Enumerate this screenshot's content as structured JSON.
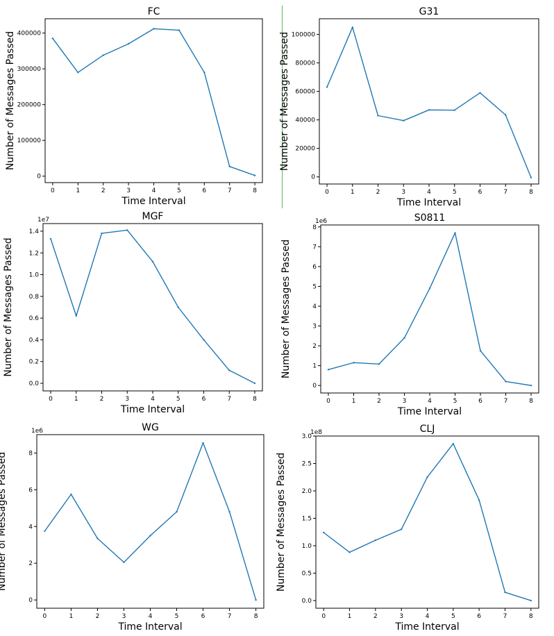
{
  "colors": {
    "line": "#1f77b4",
    "divider": "#5fb85f"
  },
  "chart_data": [
    {
      "id": "fc",
      "type": "line",
      "title": "FC",
      "xlabel": "Time Interval",
      "ylabel": "Number of Messages Passed",
      "x": [
        0,
        1,
        2,
        3,
        4,
        5,
        6,
        7,
        8
      ],
      "values": [
        385000,
        290000,
        338000,
        370000,
        412000,
        408000,
        290000,
        27000,
        2000
      ],
      "xlim": [
        -0.3,
        8.3
      ],
      "ylim": [
        -18000,
        440000
      ],
      "yticks": [
        0,
        100000,
        200000,
        300000,
        400000
      ],
      "yticklabels": [
        "0",
        "100000",
        "200000",
        "300000",
        "400000"
      ],
      "offset": ""
    },
    {
      "id": "g31",
      "type": "line",
      "title": "G31",
      "xlabel": "Time Interval",
      "ylabel": "Number of Messages Passed",
      "x": [
        0,
        1,
        2,
        3,
        4,
        5,
        6,
        7,
        8
      ],
      "values": [
        63000,
        105000,
        43000,
        39500,
        47000,
        46800,
        59000,
        43500,
        -500
      ],
      "xlim": [
        -0.3,
        8.3
      ],
      "ylim": [
        -5000,
        111000
      ],
      "yticks": [
        0,
        20000,
        40000,
        60000,
        80000,
        100000
      ],
      "yticklabels": [
        "0",
        "20000",
        "40000",
        "60000",
        "80000",
        "100000"
      ],
      "offset": ""
    },
    {
      "id": "mgf",
      "type": "line",
      "title": "MGF",
      "xlabel": "Time Interval",
      "ylabel": "Number of Messages Passed",
      "x": [
        0,
        1,
        2,
        3,
        4,
        5,
        6,
        7,
        8
      ],
      "values": [
        1.33,
        0.62,
        1.38,
        1.41,
        1.12,
        0.7,
        0.4,
        0.12,
        0.0
      ],
      "xlim": [
        -0.3,
        8.3
      ],
      "ylim": [
        -0.07,
        1.47
      ],
      "yticks": [
        0,
        0.2,
        0.4,
        0.6,
        0.8,
        1.0,
        1.2,
        1.4
      ],
      "yticklabels": [
        "0.0",
        "0.2",
        "0.4",
        "0.6",
        "0.8",
        "1.0",
        "1.2",
        "1.4"
      ],
      "offset": "1e7"
    },
    {
      "id": "s0811",
      "type": "line",
      "title": "S0811",
      "xlabel": "Time Interval",
      "ylabel": "Number of Messages Passed",
      "x": [
        0,
        1,
        2,
        3,
        4,
        5,
        6,
        7,
        8
      ],
      "values": [
        0.8,
        1.15,
        1.08,
        2.4,
        4.9,
        7.7,
        1.75,
        0.2,
        0.0
      ],
      "xlim": [
        -0.3,
        8.3
      ],
      "ylim": [
        -0.38,
        8.1
      ],
      "yticks": [
        0,
        1,
        2,
        3,
        4,
        5,
        6,
        7,
        8
      ],
      "yticklabels": [
        "0",
        "1",
        "2",
        "3",
        "4",
        "5",
        "6",
        "7",
        "8"
      ],
      "offset": "1e6"
    },
    {
      "id": "wg",
      "type": "line",
      "title": "WG",
      "xlabel": "Time Interval",
      "ylabel": "Number of Messages Passed",
      "x": [
        0,
        1,
        2,
        3,
        4,
        5,
        6,
        7,
        8
      ],
      "values": [
        3.75,
        5.75,
        3.35,
        2.05,
        3.5,
        4.8,
        8.55,
        4.8,
        0.0
      ],
      "xlim": [
        -0.3,
        8.3
      ],
      "ylim": [
        -0.45,
        9.0
      ],
      "yticks": [
        0,
        2,
        4,
        6,
        8
      ],
      "yticklabels": [
        "0",
        "2",
        "4",
        "6",
        "8"
      ],
      "offset": "1e6"
    },
    {
      "id": "clj",
      "type": "line",
      "title": "CLJ",
      "xlabel": "Time Interval",
      "ylabel": "Number of Messages Passed",
      "x": [
        0,
        1,
        2,
        3,
        4,
        5,
        6,
        7,
        8
      ],
      "values": [
        1.24,
        0.88,
        1.1,
        1.3,
        2.25,
        2.86,
        1.83,
        0.15,
        0.0
      ],
      "xlim": [
        -0.3,
        8.3
      ],
      "ylim": [
        -0.14,
        3.0
      ],
      "yticks": [
        0,
        0.5,
        1.0,
        1.5,
        2.0,
        2.5,
        3.0
      ],
      "yticklabels": [
        "0.0",
        "0.5",
        "1.0",
        "1.5",
        "2.0",
        "2.5",
        "3.0"
      ],
      "offset": "1e8"
    }
  ]
}
